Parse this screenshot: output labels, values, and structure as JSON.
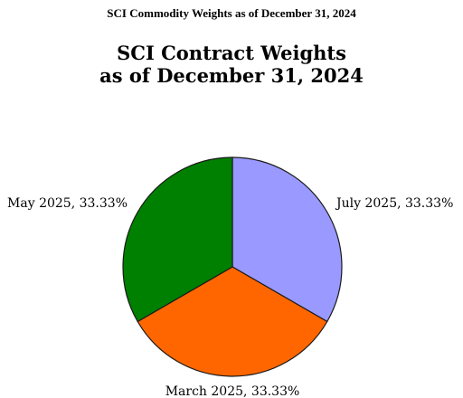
{
  "header": {
    "title": "SCI Commodity Weights as of December 31, 2024"
  },
  "chart_data": {
    "type": "pie",
    "title_lines": [
      "SCI Contract Weights",
      "as of December 31, 2024"
    ],
    "slices": [
      {
        "label": "July 2025, 33.33%",
        "value": 33.33,
        "color": "#9999ff"
      },
      {
        "label": "March 2025, 33.33%",
        "value": 33.33,
        "color": "#ff6600"
      },
      {
        "label": "May 2025, 33.33%",
        "value": 33.33,
        "color": "#008000"
      }
    ],
    "start": "12 o'clock",
    "direction": "clockwise",
    "legend": "none"
  }
}
